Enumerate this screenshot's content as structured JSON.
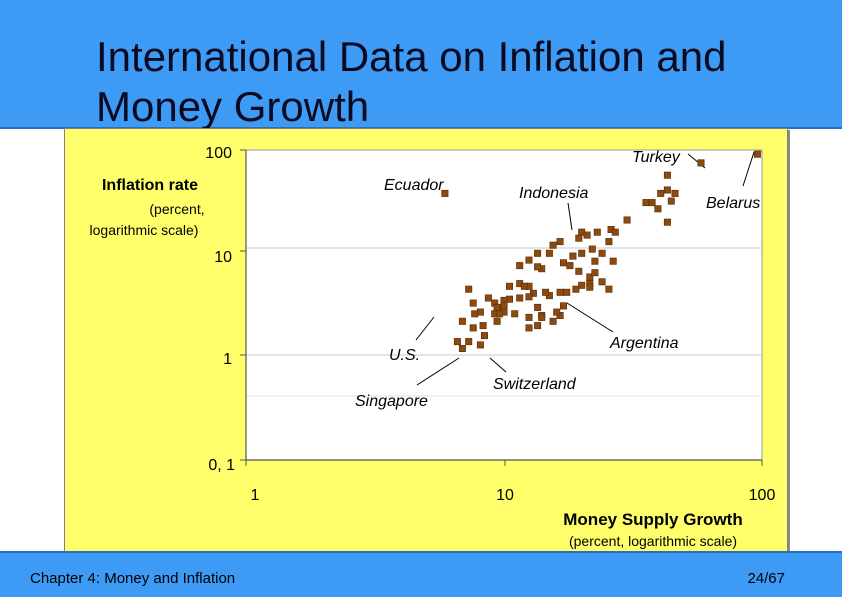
{
  "slide": {
    "title": "International Data on Inflation and Money Growth",
    "title_line1": "International Data on Inflation and",
    "title_line2": "Money Growth"
  },
  "footer": {
    "chapter": "Chapter 4: Money and Inflation",
    "page": "24/67"
  },
  "colors": {
    "band": "#3d9bf5",
    "panel": "#ffff6b",
    "plot_bg": "#ffffff",
    "marker": "#8b4a10"
  },
  "chart_data": {
    "type": "scatter",
    "x_scale": "log",
    "y_scale": "log",
    "xlim": [
      1,
      100
    ],
    "ylim": [
      0.1,
      100
    ],
    "x_ticks": [
      "1",
      "10",
      "100"
    ],
    "x_tick_values": [
      1,
      10,
      100
    ],
    "y_ticks": [
      "100",
      "10",
      "1",
      "0, 1"
    ],
    "y_tick_values": [
      100,
      10,
      1,
      0.1
    ],
    "xlabel": "Money Supply Growth",
    "xlabel_sub": "(percent, logarithmic scale)",
    "ylabel": "Inflation rate",
    "ylabel_sub1": "(percent,",
    "ylabel_sub2": "logarithmic scale)",
    "annotations": [
      {
        "label": "Turkey",
        "x": 58.0,
        "y": 75.0
      },
      {
        "label": "Belarus",
        "x": 96.0,
        "y": 91.0
      },
      {
        "label": "Ecuador",
        "x": 5.9,
        "y": 38.0
      },
      {
        "label": "Indonesia",
        "x": 22.0,
        "y": 17.0
      },
      {
        "label": "Argentina",
        "x": 21.0,
        "y": 3.6
      },
      {
        "label": "U.S.",
        "x": 6.8,
        "y": 2.2
      },
      {
        "label": "Singapore",
        "x": 8.6,
        "y": 1.3
      },
      {
        "label": "Switzerland",
        "x": 9.9,
        "y": 1.3
      }
    ],
    "points": [
      [
        96.0,
        91.0
      ],
      [
        58.0,
        75.0
      ],
      [
        5.9,
        38.0
      ],
      [
        43.0,
        57.0
      ],
      [
        43.0,
        41.0
      ],
      [
        46.0,
        38.0
      ],
      [
        40.5,
        38.0
      ],
      [
        44.5,
        32.0
      ],
      [
        35.5,
        31.0
      ],
      [
        37.5,
        31.0
      ],
      [
        43.0,
        20.0
      ],
      [
        39.5,
        27.0
      ],
      [
        30.0,
        21.0
      ],
      [
        26.0,
        17.0
      ],
      [
        27.0,
        16.0
      ],
      [
        23.0,
        16.0
      ],
      [
        20.0,
        16.0
      ],
      [
        21.0,
        15.0
      ],
      [
        25.5,
        13.0
      ],
      [
        16.5,
        13.0
      ],
      [
        19.5,
        14.0
      ],
      [
        15.5,
        12.0
      ],
      [
        15.0,
        10.0
      ],
      [
        13.5,
        10.0
      ],
      [
        12.5,
        8.6
      ],
      [
        18.5,
        9.4
      ],
      [
        20.0,
        10.0
      ],
      [
        22.0,
        11.0
      ],
      [
        24.0,
        10.0
      ],
      [
        26.5,
        8.4
      ],
      [
        22.5,
        8.4
      ],
      [
        17.0,
        8.1
      ],
      [
        18.0,
        7.6
      ],
      [
        14.0,
        7.1
      ],
      [
        13.5,
        7.4
      ],
      [
        11.5,
        7.6
      ],
      [
        19.5,
        6.7
      ],
      [
        21.5,
        5.9
      ],
      [
        21.5,
        5.1
      ],
      [
        22.5,
        6.5
      ],
      [
        24.0,
        5.3
      ],
      [
        25.5,
        4.5
      ],
      [
        21.5,
        4.7
      ],
      [
        19.0,
        4.5
      ],
      [
        20.0,
        4.9
      ],
      [
        17.5,
        4.2
      ],
      [
        16.5,
        4.2
      ],
      [
        15.0,
        3.9
      ],
      [
        12.5,
        4.8
      ],
      [
        13.0,
        4.1
      ],
      [
        14.5,
        4.2
      ],
      [
        12.5,
        3.8
      ],
      [
        11.5,
        3.7
      ],
      [
        10.5,
        3.6
      ],
      [
        9.2,
        3.3
      ],
      [
        8.7,
        3.7
      ],
      [
        11.5,
        5.1
      ],
      [
        12.0,
        4.8
      ],
      [
        10.5,
        4.8
      ],
      [
        10.0,
        3.5
      ],
      [
        10.0,
        3.1
      ],
      [
        9.4,
        3.0
      ],
      [
        10.0,
        2.7
      ],
      [
        9.2,
        2.6
      ],
      [
        9.6,
        2.6
      ],
      [
        11.0,
        2.6
      ],
      [
        12.5,
        2.4
      ],
      [
        14.0,
        2.5
      ],
      [
        13.5,
        2.0
      ],
      [
        12.5,
        1.9
      ],
      [
        15.5,
        2.2
      ],
      [
        16.5,
        2.5
      ],
      [
        17.0,
        3.1
      ],
      [
        13.5,
        3.0
      ],
      [
        7.3,
        4.5
      ],
      [
        7.6,
        3.3
      ],
      [
        8.4,
        1.6
      ],
      [
        7.6,
        1.9
      ],
      [
        9.4,
        2.2
      ],
      [
        6.9,
        2.2
      ],
      [
        8.1,
        2.7
      ],
      [
        8.3,
        2.0
      ],
      [
        6.6,
        1.4
      ],
      [
        7.3,
        1.4
      ],
      [
        6.9,
        1.2
      ],
      [
        8.1,
        1.3
      ],
      [
        14.0,
        2.4
      ],
      [
        16.0,
        2.7
      ],
      [
        7.7,
        2.6
      ]
    ]
  }
}
